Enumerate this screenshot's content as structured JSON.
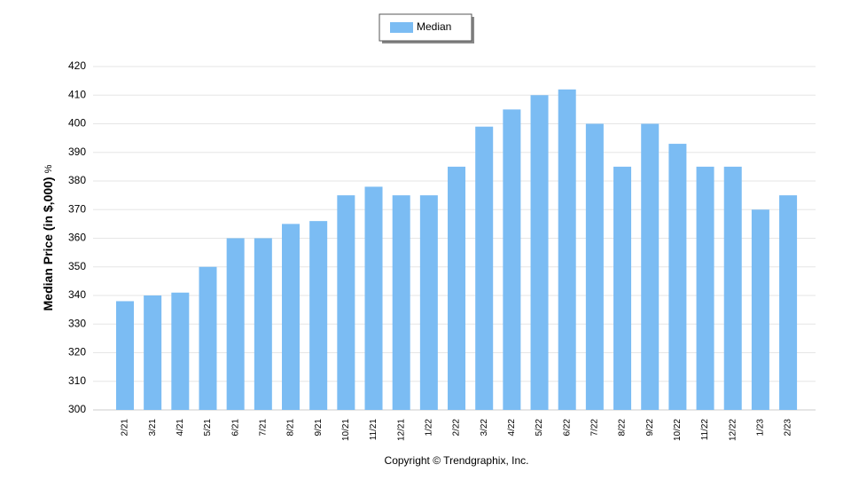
{
  "chart_data": {
    "type": "bar",
    "y_label": "Median Price (in $,000)",
    "y_unit": "%",
    "footer": "Copyright © Trendgraphix, Inc.",
    "categories": [
      "2/21",
      "3/21",
      "4/21",
      "5/21",
      "6/21",
      "7/21",
      "8/21",
      "9/21",
      "10/21",
      "11/21",
      "12/21",
      "1/22",
      "2/22",
      "3/22",
      "4/22",
      "5/22",
      "6/22",
      "7/22",
      "8/22",
      "9/22",
      "10/22",
      "11/22",
      "12/22",
      "1/23",
      "2/23"
    ],
    "series": [
      {
        "name": "Median",
        "color": "#7bbcf3",
        "values": [
          338,
          340,
          341,
          350,
          360,
          360,
          365,
          366,
          375,
          378,
          375,
          375,
          385,
          399,
          405,
          410,
          412,
          400,
          385,
          400,
          393,
          385,
          385,
          370,
          375
        ]
      }
    ],
    "ylim": [
      300,
      420
    ],
    "yticks": [
      300,
      310,
      320,
      330,
      340,
      350,
      360,
      370,
      380,
      390,
      400,
      410,
      420
    ],
    "grid": true,
    "legend": "top"
  }
}
